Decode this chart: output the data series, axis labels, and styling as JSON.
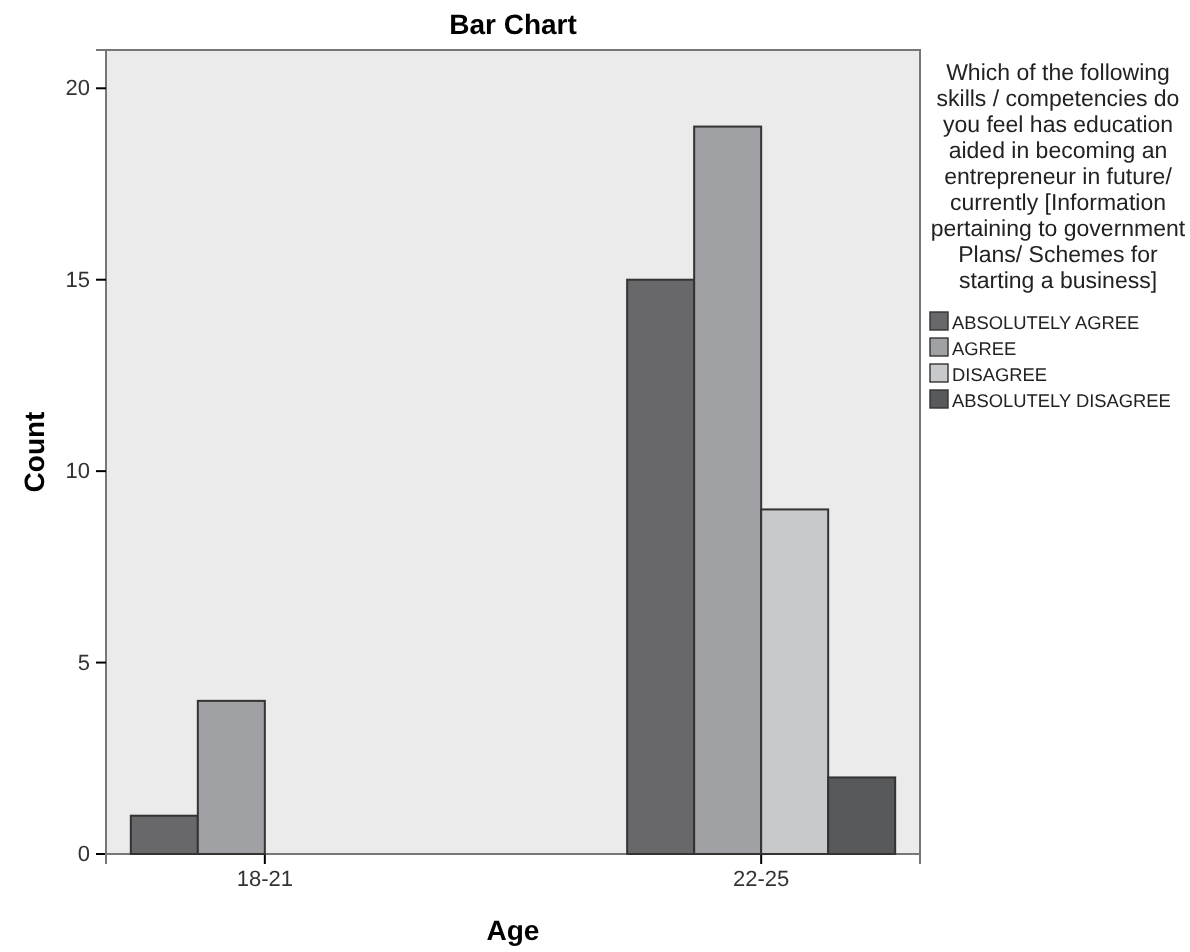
{
  "chart_data": {
    "type": "bar",
    "title": "Bar Chart",
    "xlabel": "Age",
    "ylabel": "Count",
    "legend_title": "Which of the following skills / competencies do you feel has education aided  in becoming an entrepreneur in future/ currently [Information pertaining to government Plans/ Schemes for starting a business]",
    "categories": [
      "18-21",
      "22-25"
    ],
    "series": [
      {
        "name": "ABSOLUTELY AGREE",
        "color": "#68686b",
        "values": [
          1,
          15
        ]
      },
      {
        "name": "AGREE",
        "color": "#a0a1a5",
        "values": [
          4,
          19
        ]
      },
      {
        "name": "DISAGREE",
        "color": "#c8c9cb",
        "values": [
          0,
          9
        ]
      },
      {
        "name": "ABSOLUTELY DISAGREE",
        "color": "#58595b",
        "values": [
          0,
          2
        ]
      }
    ],
    "ylim": [
      0,
      21
    ],
    "yticks": [
      0,
      5,
      10,
      15,
      20
    ],
    "grid": false,
    "legend": "right"
  }
}
